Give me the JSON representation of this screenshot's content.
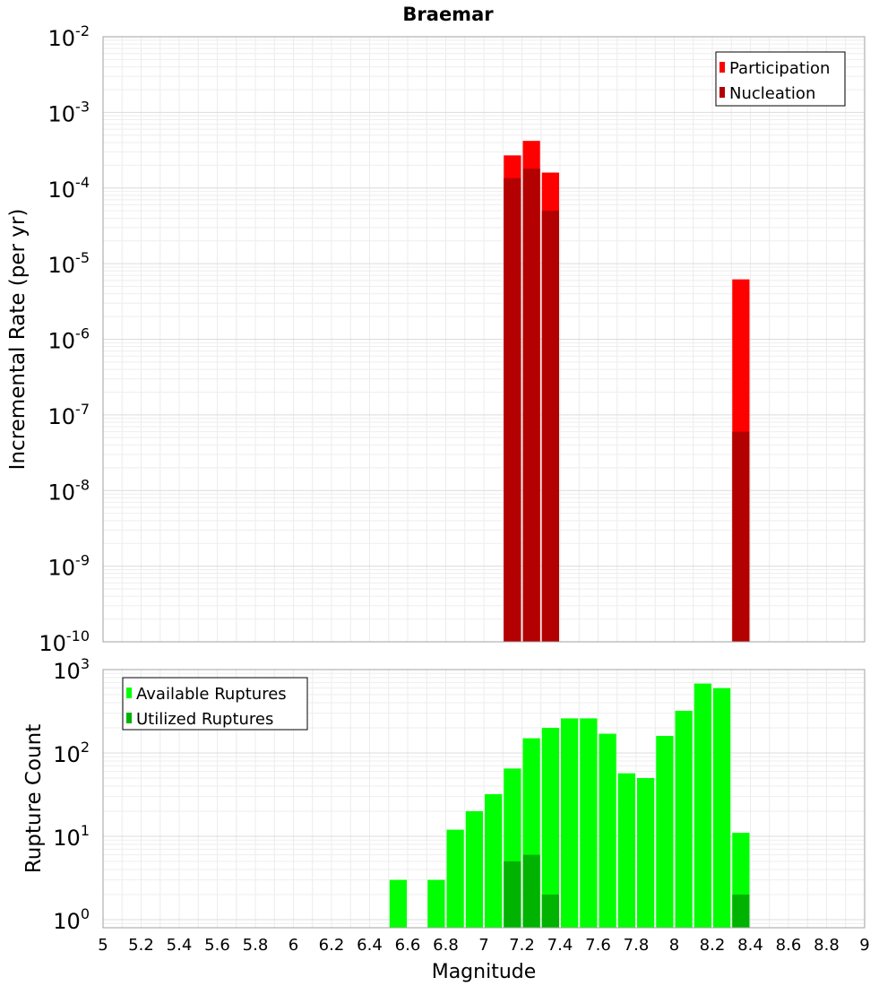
{
  "chart_data": [
    {
      "type": "bar",
      "title": "Braemar",
      "xlabel": "",
      "ylabel": "Incremental Rate (per yr)",
      "yscale": "log",
      "ylim": [
        1e-10,
        0.01
      ],
      "xlim": [
        5,
        9
      ],
      "grid": true,
      "legend_position": "top-right",
      "bin_width": 0.1,
      "y_tick_exponents": [
        -10,
        -9,
        -8,
        -7,
        -6,
        -5,
        -4,
        -3,
        -2
      ],
      "series": [
        {
          "name": "Participation",
          "color": "#ff0000",
          "points": [
            {
              "x": 7.15,
              "y": 0.00027
            },
            {
              "x": 7.25,
              "y": 0.00042
            },
            {
              "x": 7.35,
              "y": 0.00016
            },
            {
              "x": 8.35,
              "y": 6.2e-06
            }
          ]
        },
        {
          "name": "Nucleation",
          "color": "#b30000",
          "points": [
            {
              "x": 7.15,
              "y": 0.000135
            },
            {
              "x": 7.25,
              "y": 0.00018
            },
            {
              "x": 7.35,
              "y": 5e-05
            },
            {
              "x": 8.35,
              "y": 6e-08
            }
          ]
        }
      ]
    },
    {
      "type": "bar",
      "title": "",
      "xlabel": "Magnitude",
      "ylabel": "Rupture Count",
      "yscale": "log",
      "ylim": [
        0.8,
        1000
      ],
      "xlim": [
        5,
        9
      ],
      "grid": true,
      "legend_position": "top-left",
      "bin_width": 0.1,
      "y_tick_exponents": [
        0,
        1,
        2,
        3
      ],
      "x_ticks": [
        "5",
        "5.2",
        "5.4",
        "5.6",
        "5.8",
        "6",
        "6.2",
        "6.4",
        "6.6",
        "6.8",
        "7",
        "7.2",
        "7.4",
        "7.6",
        "7.8",
        "8",
        "8.2",
        "8.4",
        "8.6",
        "8.8",
        "9"
      ],
      "series": [
        {
          "name": "Available Ruptures",
          "color": "#00ff00",
          "points": [
            {
              "x": 6.55,
              "y": 3
            },
            {
              "x": 6.75,
              "y": 3
            },
            {
              "x": 6.85,
              "y": 12
            },
            {
              "x": 6.95,
              "y": 20
            },
            {
              "x": 7.05,
              "y": 32
            },
            {
              "x": 7.15,
              "y": 65
            },
            {
              "x": 7.25,
              "y": 150
            },
            {
              "x": 7.35,
              "y": 200
            },
            {
              "x": 7.45,
              "y": 260
            },
            {
              "x": 7.55,
              "y": 260
            },
            {
              "x": 7.65,
              "y": 170
            },
            {
              "x": 7.75,
              "y": 57
            },
            {
              "x": 7.85,
              "y": 50
            },
            {
              "x": 7.95,
              "y": 160
            },
            {
              "x": 8.05,
              "y": 320
            },
            {
              "x": 8.15,
              "y": 680
            },
            {
              "x": 8.25,
              "y": 600
            },
            {
              "x": 8.35,
              "y": 11
            }
          ]
        },
        {
          "name": "Utilized Ruptures",
          "color": "#00b300",
          "points": [
            {
              "x": 7.15,
              "y": 5
            },
            {
              "x": 7.25,
              "y": 6
            },
            {
              "x": 7.35,
              "y": 2
            },
            {
              "x": 8.35,
              "y": 2
            }
          ]
        }
      ]
    }
  ]
}
